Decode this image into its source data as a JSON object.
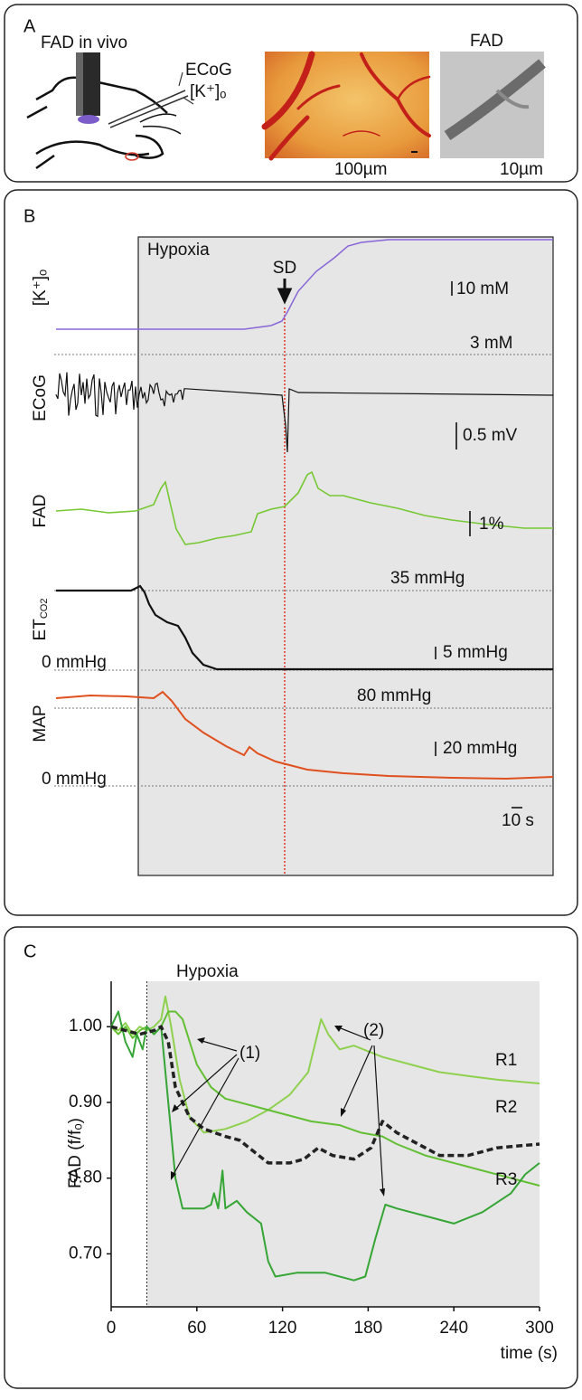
{
  "panel_a": {
    "label": "A",
    "title": "FAD in vivo",
    "ecog": "ECoG",
    "potassium": "[K⁺]ₒ",
    "image_title": "FAD",
    "scale_left": "100µm",
    "scale_right": "10µm"
  },
  "panel_b": {
    "label": "B",
    "hypoxia": "Hypoxia",
    "sd": "SD",
    "traces": {
      "potassium": "[K⁺]ₒ",
      "ecog": "ECoG",
      "fad": "FAD",
      "etco2_main": "ET",
      "etco2_sub": "CO2",
      "map": "MAP"
    },
    "scales": {
      "k_bar": "10 mM",
      "k_base": "3 mM",
      "ecog_bar": "0.5 mV",
      "fad_bar": "1%",
      "co2_base": "35 mmHg",
      "co2_zero": "0 mmHg",
      "co2_bar": "5 mmHg",
      "map_base": "80 mmHg",
      "map_zero": "0 mmHg",
      "map_bar": "20 mmHg",
      "time_bar": "10 s"
    }
  },
  "panel_c": {
    "label": "C"
  },
  "chart_data": {
    "type": "line",
    "xlabel": "time (s)",
    "ylabel": "FAD (f/fₒ)",
    "annotations": [
      "Hypoxia",
      "(1)",
      "(2)"
    ],
    "hypoxia_x": [
      25,
      300
    ],
    "xlim": [
      0,
      300
    ],
    "xticks": [
      0,
      60,
      120,
      180,
      240,
      300
    ],
    "ylim": [
      0.63,
      1.06
    ],
    "yticks": [
      {
        "value": 0.7,
        "label": "0.70"
      },
      {
        "value": 0.8,
        "label": "0.80"
      },
      {
        "value": 0.9,
        "label": "0.90"
      },
      {
        "value": 1.0,
        "label": "1.00"
      }
    ],
    "series": [
      {
        "name": "R1",
        "color": "#8fd14f",
        "x": [
          0,
          5,
          10,
          15,
          20,
          25,
          30,
          35,
          38,
          42,
          48,
          55,
          65,
          80,
          95,
          110,
          125,
          138,
          147,
          152,
          160,
          170,
          190,
          210,
          230,
          250,
          270,
          300
        ],
        "values": [
          1.0,
          0.995,
          1.005,
          0.99,
          1.0,
          0.995,
          1.0,
          1.01,
          1.04,
          1.0,
          0.93,
          0.88,
          0.86,
          0.865,
          0.875,
          0.89,
          0.91,
          0.94,
          1.01,
          0.99,
          0.97,
          0.975,
          0.96,
          0.95,
          0.94,
          0.935,
          0.93,
          0.925
        ]
      },
      {
        "name": "R2",
        "color": "#62bf34",
        "x": [
          0,
          5,
          10,
          15,
          20,
          25,
          30,
          35,
          40,
          45,
          50,
          55,
          60,
          70,
          80,
          100,
          120,
          140,
          160,
          175,
          190,
          200,
          220,
          250,
          280,
          300
        ],
        "values": [
          1.0,
          0.99,
          1.0,
          0.985,
          0.995,
          1.0,
          0.99,
          1.0,
          1.02,
          1.02,
          1.01,
          0.98,
          0.95,
          0.92,
          0.905,
          0.895,
          0.885,
          0.875,
          0.87,
          0.86,
          0.855,
          0.845,
          0.83,
          0.815,
          0.8,
          0.79
        ]
      },
      {
        "name": "R3",
        "color": "#35a535",
        "x": [
          0,
          5,
          10,
          15,
          18,
          22,
          25,
          30,
          35,
          40,
          45,
          50,
          65,
          70,
          72,
          75,
          78,
          80,
          88,
          95,
          105,
          110,
          115,
          130,
          150,
          170,
          178,
          185,
          192,
          200,
          220,
          240,
          260,
          280,
          290,
          300
        ],
        "values": [
          1.0,
          1.02,
          0.98,
          0.96,
          0.99,
          0.97,
          1.0,
          0.99,
          1.0,
          0.9,
          0.8,
          0.76,
          0.76,
          0.765,
          0.78,
          0.76,
          0.81,
          0.76,
          0.77,
          0.755,
          0.74,
          0.69,
          0.67,
          0.675,
          0.675,
          0.665,
          0.67,
          0.72,
          0.765,
          0.76,
          0.75,
          0.74,
          0.755,
          0.78,
          0.805,
          0.82
        ]
      },
      {
        "color": "#222222",
        "dashed": true,
        "x": [
          0,
          10,
          20,
          30,
          35,
          40,
          45,
          55,
          65,
          80,
          90,
          100,
          110,
          125,
          135,
          145,
          155,
          170,
          182,
          190,
          200,
          215,
          230,
          250,
          270,
          300
        ],
        "values": [
          1.0,
          0.995,
          0.99,
          0.995,
          1.0,
          0.98,
          0.92,
          0.88,
          0.865,
          0.855,
          0.85,
          0.835,
          0.82,
          0.82,
          0.825,
          0.84,
          0.83,
          0.825,
          0.84,
          0.875,
          0.86,
          0.845,
          0.83,
          0.83,
          0.84,
          0.845
        ]
      }
    ]
  }
}
